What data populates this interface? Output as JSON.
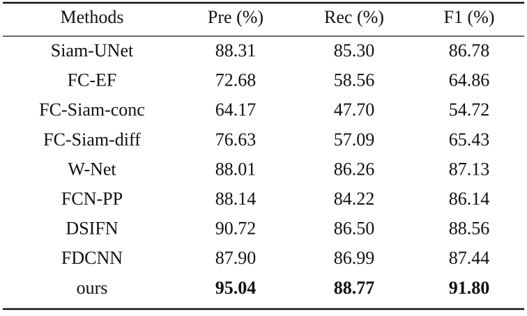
{
  "table": {
    "header": [
      "Methods",
      "Pre (%)",
      "Rec (%)",
      "F1 (%)"
    ],
    "rows": [
      [
        "Siam-UNet",
        "88.31",
        "85.30",
        "86.78"
      ],
      [
        "FC-EF",
        "72.68",
        "58.56",
        "64.86"
      ],
      [
        "FC-Siam-conc",
        "64.17",
        "47.70",
        "54.72"
      ],
      [
        "FC-Siam-diff",
        "76.63",
        "57.09",
        "65.43"
      ],
      [
        "W-Net",
        "88.01",
        "86.26",
        "87.13"
      ],
      [
        "FCN-PP",
        "88.14",
        "84.22",
        "86.14"
      ],
      [
        "DSIFN",
        "90.72",
        "86.50",
        "88.56"
      ],
      [
        "FDCNN",
        "87.90",
        "86.99",
        "87.44"
      ],
      [
        "ours",
        "95.04",
        "88.77",
        "91.80"
      ]
    ]
  }
}
